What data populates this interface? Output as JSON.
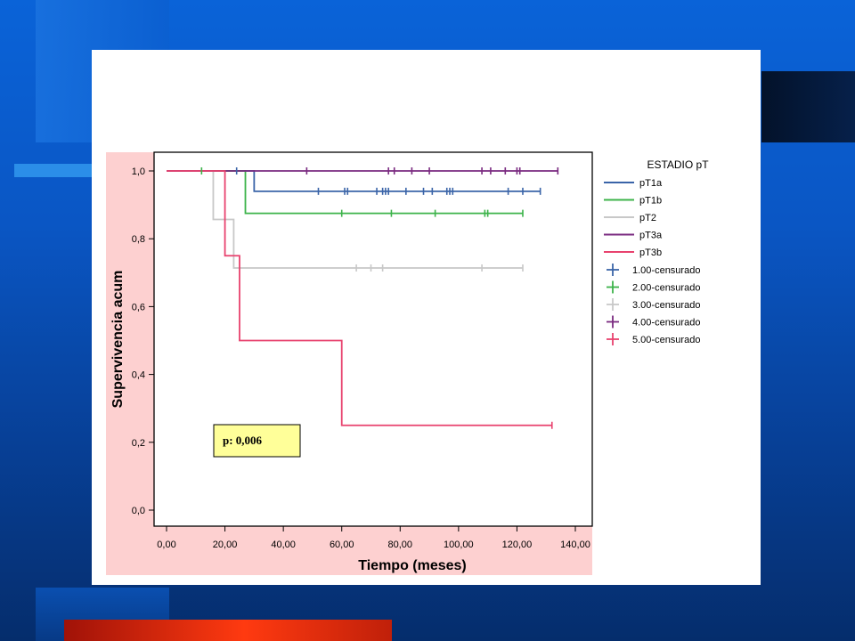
{
  "colors": {
    "chart_background": "#fdd0d0",
    "plot_background": "#ffffff",
    "pvalue_box": "#ffff99"
  },
  "chart_data": {
    "type": "line",
    "subtype": "kaplan-meier",
    "title": "",
    "xlabel": "Tiempo (meses)",
    "ylabel": "Supervivencia acum",
    "xlim": [
      0,
      140
    ],
    "ylim": [
      0,
      1
    ],
    "x_ticks": [
      "0,00",
      "20,00",
      "40,00",
      "60,00",
      "80,00",
      "100,00",
      "120,00",
      "140,00"
    ],
    "y_ticks": [
      "0,0",
      "0,2",
      "0,4",
      "0,6",
      "0,8",
      "1,0"
    ],
    "grid": false,
    "legend_position": "right",
    "legend_title": "ESTADIO pT",
    "annotation": "p: 0,006",
    "series": [
      {
        "name": "pT1a",
        "color": "#3a64a8",
        "steps": [
          [
            0,
            1.0
          ],
          [
            30,
            0.94
          ],
          [
            128,
            0.94
          ]
        ],
        "censored": [
          [
            24,
            1.0
          ],
          [
            52,
            0.94
          ],
          [
            61,
            0.94
          ],
          [
            62,
            0.94
          ],
          [
            72,
            0.94
          ],
          [
            74,
            0.94
          ],
          [
            75,
            0.94
          ],
          [
            76,
            0.94
          ],
          [
            82,
            0.94
          ],
          [
            88,
            0.94
          ],
          [
            91,
            0.94
          ],
          [
            96,
            0.94
          ],
          [
            97,
            0.94
          ],
          [
            98,
            0.94
          ],
          [
            117,
            0.94
          ],
          [
            122,
            0.94
          ],
          [
            128,
            0.94
          ]
        ]
      },
      {
        "name": "pT1b",
        "color": "#3cb34a",
        "steps": [
          [
            0,
            1.0
          ],
          [
            27,
            0.875
          ],
          [
            122,
            0.875
          ]
        ],
        "censored": [
          [
            12,
            1.0
          ],
          [
            60,
            0.875
          ],
          [
            77,
            0.875
          ],
          [
            92,
            0.875
          ],
          [
            109,
            0.875
          ],
          [
            110,
            0.875
          ],
          [
            122,
            0.875
          ]
        ]
      },
      {
        "name": "pT2",
        "color": "#c8c8c8",
        "steps": [
          [
            0,
            1.0
          ],
          [
            16,
            0.857
          ],
          [
            23,
            0.714
          ],
          [
            122,
            0.714
          ]
        ],
        "censored": [
          [
            65,
            0.714
          ],
          [
            70,
            0.714
          ],
          [
            74,
            0.714
          ],
          [
            108,
            0.714
          ],
          [
            122,
            0.714
          ]
        ]
      },
      {
        "name": "pT3a",
        "color": "#7a2a80",
        "steps": [
          [
            0,
            1.0
          ],
          [
            134,
            1.0
          ]
        ],
        "censored": [
          [
            48,
            1.0
          ],
          [
            76,
            1.0
          ],
          [
            78,
            1.0
          ],
          [
            84,
            1.0
          ],
          [
            90,
            1.0
          ],
          [
            108,
            1.0
          ],
          [
            111,
            1.0
          ],
          [
            116,
            1.0
          ],
          [
            120,
            1.0
          ],
          [
            121,
            1.0
          ],
          [
            134,
            1.0
          ]
        ]
      },
      {
        "name": "pT3b",
        "color": "#e8426e",
        "steps": [
          [
            0,
            1.0
          ],
          [
            20,
            0.75
          ],
          [
            25,
            0.5
          ],
          [
            60,
            0.25
          ],
          [
            132,
            0.25
          ]
        ],
        "censored": [
          [
            132,
            0.25
          ]
        ]
      }
    ],
    "censored_legend": [
      {
        "label": "1.00-censurado",
        "color": "#3a64a8"
      },
      {
        "label": "2.00-censurado",
        "color": "#3cb34a"
      },
      {
        "label": "3.00-censurado",
        "color": "#c8c8c8"
      },
      {
        "label": "4.00-censurado",
        "color": "#7a2a80"
      },
      {
        "label": "5.00-censurado",
        "color": "#e8426e"
      }
    ]
  }
}
